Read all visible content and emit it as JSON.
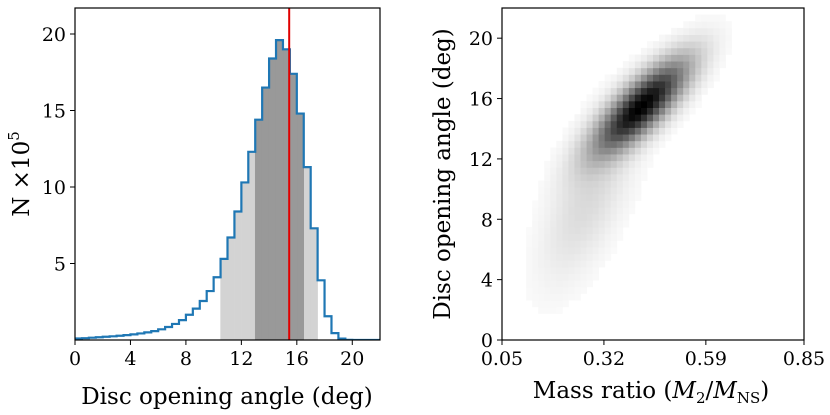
{
  "chart_data": [
    {
      "type": "histogram",
      "xlabel": "Disc opening angle (deg)",
      "ylabel": "N ×10",
      "ylabel_exponent": "5",
      "xlim": [
        0,
        22
      ],
      "ylim": [
        0,
        21.7
      ],
      "xticks": [
        0,
        4,
        8,
        12,
        16,
        20
      ],
      "xtick_labels": [
        "0",
        "4",
        "8",
        "12",
        "16",
        "20"
      ],
      "yticks": [
        5,
        10,
        15,
        20
      ],
      "ytick_labels": [
        "5",
        "10",
        "15",
        "20"
      ],
      "bin_width": 0.5,
      "bin_start": 0,
      "counts": [
        0.1,
        0.12,
        0.15,
        0.18,
        0.21,
        0.24,
        0.28,
        0.32,
        0.37,
        0.43,
        0.5,
        0.58,
        0.7,
        0.85,
        1.05,
        1.3,
        1.65,
        2.05,
        2.55,
        3.2,
        4.1,
        5.3,
        6.7,
        8.4,
        10.3,
        12.3,
        14.4,
        16.5,
        18.4,
        19.6,
        19.0,
        17.4,
        14.8,
        11.3,
        7.3,
        3.9,
        1.55,
        0.45,
        0.09,
        0.01,
        0.0,
        0.0,
        0.0,
        0.0
      ],
      "shaded_intervals": [
        {
          "level": "outer",
          "range": [
            10.5,
            17.5
          ],
          "color": "#d3d3d3"
        },
        {
          "level": "inner",
          "range": [
            13.0,
            16.5
          ],
          "color": "#999999"
        }
      ],
      "marker_line": {
        "x": 15.45,
        "color": "#e00000"
      },
      "step_color": "#1f77b4"
    },
    {
      "type": "heatmap",
      "xlabel_prefix": "Mass ratio (",
      "xlabel_m2": "M",
      "xlabel_m2_sub": "2",
      "xlabel_slash": "/",
      "xlabel_mns": "M",
      "xlabel_mns_sub": "NS",
      "xlabel_suffix": ")",
      "ylabel": "Disc opening angle (deg)",
      "xlim": [
        0.05,
        0.85
      ],
      "ylim": [
        0,
        22
      ],
      "xticks": [
        0.05,
        0.32,
        0.59,
        0.85
      ],
      "xtick_labels": [
        "0.05",
        "0.32",
        "0.59",
        "0.85"
      ],
      "yticks": [
        0,
        4,
        8,
        12,
        16,
        20
      ],
      "ytick_labels": [
        "0",
        "4",
        "8",
        "12",
        "16",
        "20"
      ],
      "colormap": "greys",
      "density_peak": {
        "x": 0.42,
        "y": 15.5
      },
      "density_trend": "positive correlation; tail toward low mass ratio and low angle"
    }
  ]
}
